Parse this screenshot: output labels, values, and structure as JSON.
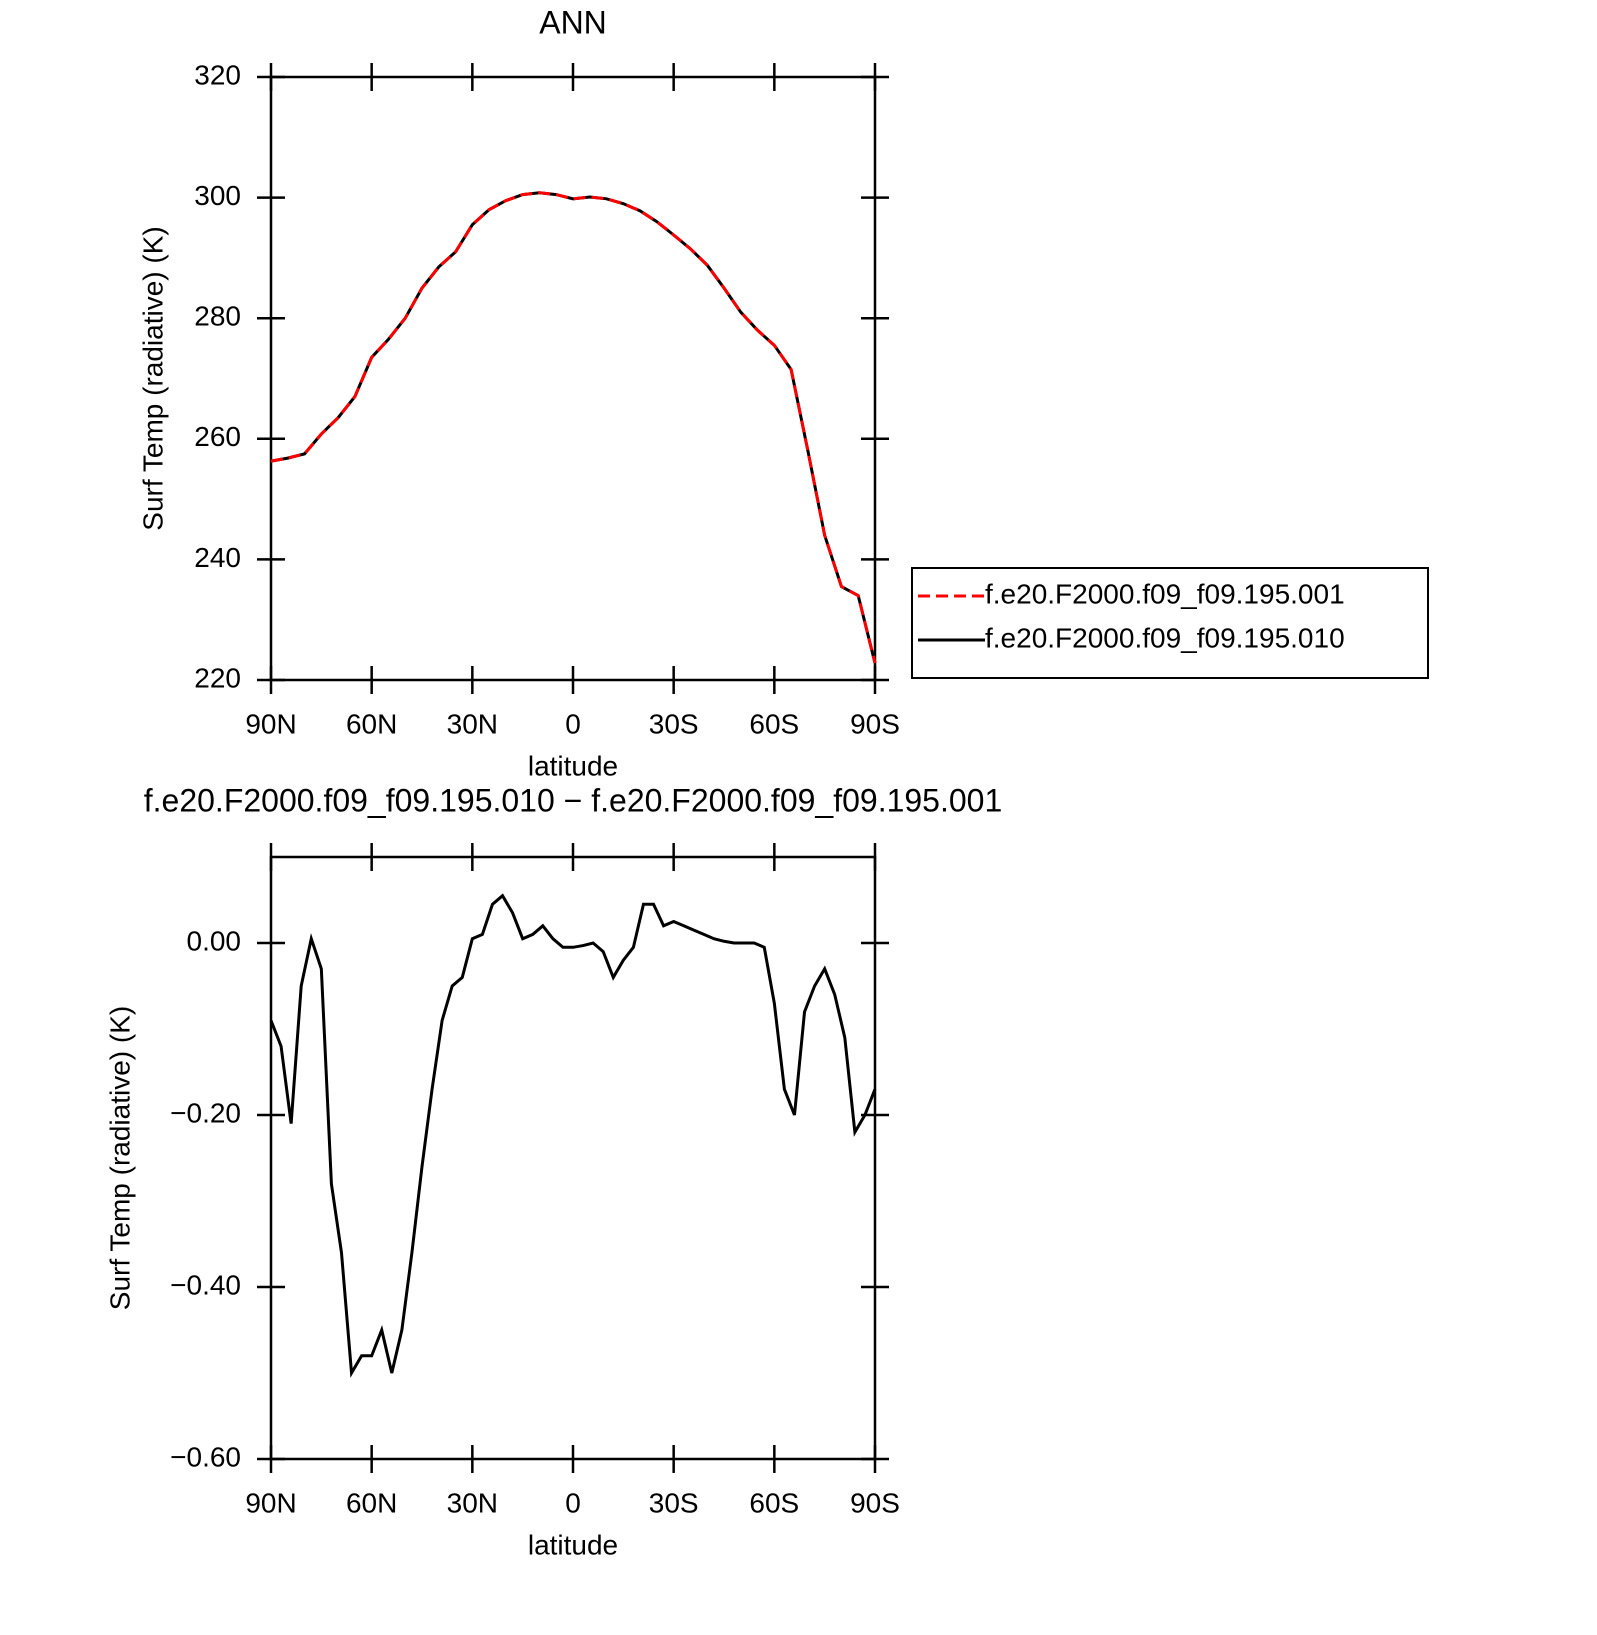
{
  "chart_data": [
    {
      "type": "line",
      "title": "ANN",
      "xlabel": "latitude",
      "ylabel": "Surf Temp (radiative) (K)",
      "x": [
        90,
        85,
        80,
        75,
        70,
        65,
        60,
        55,
        50,
        45,
        40,
        35,
        30,
        25,
        20,
        15,
        10,
        5,
        0,
        -5,
        -10,
        -15,
        -20,
        -25,
        -30,
        -35,
        -40,
        -45,
        -50,
        -55,
        -60,
        -65,
        -70,
        -75,
        -80,
        -85,
        -90
      ],
      "series": [
        {
          "name": "f.e20.F2000.f09_f09.195.001",
          "color": "#ff0000",
          "dash": true,
          "values": [
            256.3,
            256.8,
            257.5,
            260.8,
            263.5,
            267,
            273.5,
            276.5,
            280,
            285,
            288.5,
            291,
            295.5,
            298,
            299.5,
            300.5,
            300.8,
            300.5,
            299.8,
            300.1,
            299.8,
            299,
            297.8,
            296,
            293.8,
            291.5,
            288.8,
            285,
            281,
            278,
            275.5,
            271.5,
            258,
            244,
            235.5,
            234,
            222.8
          ]
        },
        {
          "name": "f.e20.F2000.f09_f09.195.010",
          "color": "#000000",
          "dash": false,
          "values": [
            256.3,
            256.8,
            257.5,
            260.8,
            263.5,
            267,
            273.5,
            276.5,
            280,
            285,
            288.5,
            291,
            295.5,
            298,
            299.5,
            300.5,
            300.8,
            300.5,
            299.8,
            300.1,
            299.8,
            299,
            297.8,
            296,
            293.8,
            291.5,
            288.8,
            285,
            281,
            278,
            275.5,
            271.5,
            258,
            244,
            235.5,
            234,
            222.8
          ]
        }
      ],
      "xlim": [
        90,
        -90
      ],
      "xticks": [
        {
          "value": 90,
          "label": "90N"
        },
        {
          "value": 60,
          "label": "60N"
        },
        {
          "value": 30,
          "label": "30N"
        },
        0,
        {
          "value": -30,
          "label": "30S"
        },
        {
          "value": -60,
          "label": "60S"
        },
        {
          "value": -90,
          "label": "90S"
        }
      ],
      "ylim": [
        220,
        320
      ],
      "yticks": [
        220,
        240,
        260,
        280,
        300,
        320
      ],
      "legend": "right"
    },
    {
      "type": "line",
      "title": "f.e20.F2000.f09_f09.195.010 − f.e20.F2000.f09_f09.195.001",
      "xlabel": "latitude",
      "ylabel": "Surf Temp (radiative) (K)",
      "x": [
        90,
        87,
        84,
        81,
        78,
        75,
        72,
        69,
        66,
        63,
        60,
        57,
        54,
        51,
        48,
        45,
        42,
        39,
        36,
        33,
        30,
        27,
        24,
        21,
        18,
        15,
        12,
        9,
        6,
        3,
        0,
        -3,
        -6,
        -9,
        -12,
        -15,
        -18,
        -21,
        -24,
        -27,
        -30,
        -33,
        -36,
        -39,
        -42,
        -45,
        -48,
        -51,
        -54,
        -57,
        -60,
        -63,
        -66,
        -69,
        -72,
        -75,
        -78,
        -81,
        -84,
        -87,
        -90
      ],
      "series": [
        {
          "color": "#000000",
          "values": [
            -0.09,
            -0.12,
            -0.21,
            -0.05,
            0.005,
            -0.03,
            -0.28,
            -0.36,
            -0.5,
            -0.48,
            -0.48,
            -0.45,
            -0.5,
            -0.45,
            -0.36,
            -0.26,
            -0.17,
            -0.09,
            -0.05,
            -0.04,
            0.005,
            0.01,
            0.045,
            0.055,
            0.035,
            0.005,
            0.01,
            0.02,
            0.005,
            -0.005,
            -0.005,
            -0.003,
            0.0,
            -0.01,
            -0.04,
            -0.02,
            -0.005,
            0.045,
            0.045,
            0.02,
            0.025,
            0.02,
            0.015,
            0.01,
            0.005,
            0.002,
            0.0,
            0.0,
            0.0,
            -0.005,
            -0.07,
            -0.17,
            -0.2,
            -0.08,
            -0.05,
            -0.03,
            -0.06,
            -0.11,
            -0.22,
            -0.2,
            -0.17
          ]
        }
      ],
      "xlim": [
        90,
        -90
      ],
      "xticks": [
        {
          "value": 90,
          "label": "90N"
        },
        {
          "value": 60,
          "label": "60N"
        },
        {
          "value": 30,
          "label": "30N"
        },
        0,
        {
          "value": -30,
          "label": "30S"
        },
        {
          "value": -60,
          "label": "60S"
        },
        {
          "value": -90,
          "label": "90S"
        }
      ],
      "ylim": [
        -0.6,
        0.1
      ],
      "yticks": [
        {
          "value": -0.6,
          "label": "−0.60"
        },
        {
          "value": -0.4,
          "label": "−0.40"
        },
        {
          "value": -0.2,
          "label": "−0.20"
        },
        {
          "value": 0,
          "label": "0.00"
        }
      ]
    }
  ]
}
